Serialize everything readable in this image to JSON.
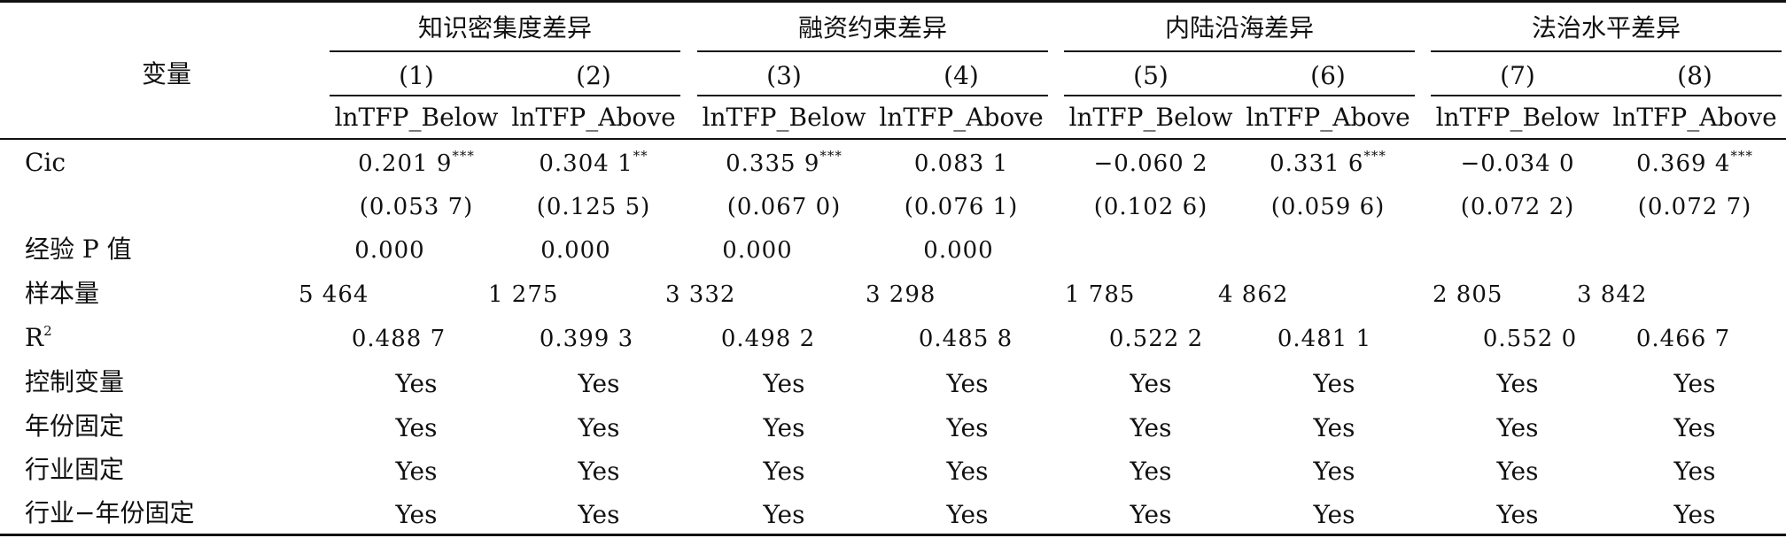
{
  "table": {
    "variable_header": "变量",
    "groups": [
      {
        "label": "知识密集度差异"
      },
      {
        "label": "融资约束差异"
      },
      {
        "label": "内陆沿海差异"
      },
      {
        "label": "法治水平差异"
      }
    ],
    "column_numbers": [
      "(1)",
      "(2)",
      "(3)",
      "(4)",
      "(5)",
      "(6)",
      "(7)",
      "(8)"
    ],
    "column_labels": [
      "lnTFP_Below",
      "lnTFP_Above",
      "lnTFP_Below",
      "lnTFP_Above",
      "lnTFP_Below",
      "lnTFP_Above",
      "lnTFP_Below",
      "lnTFP_Above"
    ],
    "rows": {
      "cic": {
        "label": "Cic",
        "coefficients": [
          "0.201 9",
          "0.304 1",
          "0.335 9",
          "0.083 1",
          "−0.060 2",
          "0.331 6",
          "−0.034 0",
          "0.369 4"
        ],
        "stars": [
          "***",
          "**",
          "***",
          "",
          "",
          "***",
          "",
          "***"
        ],
        "std_errors": [
          "(0.053 7)",
          "(0.125 5)",
          "(0.067 0)",
          "(0.076 1)",
          "(0.102 6)",
          "(0.059 6)",
          "(0.072 2)",
          "(0.072 7)"
        ]
      },
      "p_value": {
        "label": "经验 P 值",
        "values": [
          "0.000",
          "0.000",
          "0.000",
          "0.000"
        ]
      },
      "sample": {
        "label": "样本量",
        "values": [
          "5 464",
          "1 275",
          "3 332",
          "3 298",
          "1 785",
          "4 862",
          "2 805",
          "3 842"
        ]
      },
      "r2": {
        "label": "R",
        "label_sup": "2",
        "values": [
          "0.488 7",
          "0.399 3",
          "0.498 2",
          "0.485 8",
          "0.522 2",
          "0.481 1",
          "0.552 0",
          "0.466 7"
        ]
      },
      "controls": {
        "label": "控制变量",
        "values": [
          "Yes",
          "Yes",
          "Yes",
          "Yes",
          "Yes",
          "Yes",
          "Yes",
          "Yes"
        ]
      },
      "year_fe": {
        "label": "年份固定",
        "values": [
          "Yes",
          "Yes",
          "Yes",
          "Yes",
          "Yes",
          "Yes",
          "Yes",
          "Yes"
        ]
      },
      "industry_fe": {
        "label": "行业固定",
        "values": [
          "Yes",
          "Yes",
          "Yes",
          "Yes",
          "Yes",
          "Yes",
          "Yes",
          "Yes"
        ]
      },
      "industry_year_fe": {
        "label": "行业−年份固定",
        "values": [
          "Yes",
          "Yes",
          "Yes",
          "Yes",
          "Yes",
          "Yes",
          "Yes",
          "Yes"
        ]
      }
    }
  }
}
